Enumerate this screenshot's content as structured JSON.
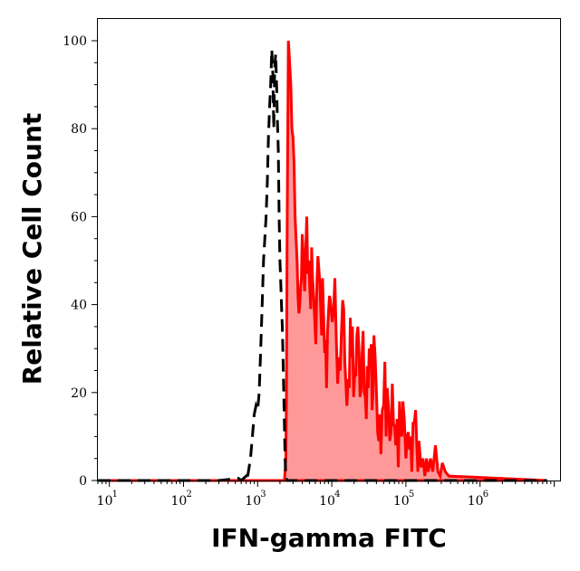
{
  "chart_data": {
    "type": "area",
    "title": "",
    "xlabel": "IFN-gamma FITC",
    "ylabel": "Relative Cell Count",
    "xscale": "log",
    "xlim": [
      7,
      12000000
    ],
    "ylim": [
      0,
      100
    ],
    "grid": false,
    "x_ticks": [
      {
        "base": "10",
        "exp": "1",
        "value": 10
      },
      {
        "base": "10",
        "exp": "2",
        "value": 100
      },
      {
        "base": "10",
        "exp": "3",
        "value": 1000
      },
      {
        "base": "10",
        "exp": "4",
        "value": 10000
      },
      {
        "base": "10",
        "exp": "5",
        "value": 100000
      },
      {
        "base": "10",
        "exp": "6",
        "value": 1000000
      }
    ],
    "y_ticks": [
      "0",
      "20",
      "40",
      "60",
      "80",
      "100"
    ],
    "series": [
      {
        "style": "dashed",
        "color": "#000000",
        "x": [
          7,
          300,
          550,
          600,
          700,
          720,
          750,
          800,
          850,
          900,
          950,
          1000,
          1050,
          1100,
          1150,
          1200,
          1250,
          1300,
          1350,
          1400,
          1450,
          1500,
          1550,
          1600,
          1650,
          1700,
          1750,
          1800,
          1850,
          1900,
          1950,
          2000,
          2050,
          2100,
          2150,
          2200,
          2250,
          2300,
          2350,
          2400,
          2500,
          2600,
          3000,
          5000,
          8000000
        ],
        "y": [
          0,
          0,
          0.5,
          0,
          1,
          0,
          2,
          5,
          10,
          15,
          17,
          16,
          20,
          30,
          40,
          50,
          55,
          60,
          68,
          78,
          85,
          90,
          98,
          93,
          80,
          94,
          97,
          90,
          82,
          75,
          60,
          50,
          45,
          40,
          35,
          28,
          20,
          12,
          5,
          1,
          0,
          0,
          0,
          0,
          0
        ]
      },
      {
        "style": "filled",
        "color": "#ff0000",
        "fill": "#ff9999",
        "x": [
          7,
          2000,
          2300,
          2400,
          2450,
          2500,
          2600,
          2700,
          2800,
          2900,
          3000,
          3100,
          3200,
          3300,
          3400,
          3500,
          3600,
          3700,
          3800,
          3900,
          4000,
          4150,
          4300,
          4450,
          4600,
          4750,
          4900,
          5050,
          5200,
          5350,
          5500,
          5700,
          5900,
          6100,
          6300,
          6500,
          6700,
          6900,
          7100,
          7300,
          7500,
          7750,
          8000,
          8250,
          8500,
          8750,
          9000,
          9300,
          9600,
          9900,
          10200,
          10600,
          11000,
          11500,
          12000,
          12500,
          13000,
          13500,
          14000,
          14500,
          15000,
          15500,
          16000,
          16600,
          17200,
          17800,
          18400,
          19000,
          19700,
          20400,
          21100,
          21800,
          22500,
          23300,
          24100,
          24900,
          25700,
          26500,
          27400,
          28300,
          29200,
          30100,
          31000,
          32000,
          33000,
          34000,
          35000,
          36000,
          37000,
          38500,
          40000,
          41500,
          43000,
          44500,
          46000,
          48000,
          50000,
          52000,
          54000,
          56000,
          58000,
          60500,
          63000,
          65500,
          68000,
          70500,
          73000,
          76000,
          79000,
          82000,
          85000,
          88000,
          91000,
          95000,
          100000,
          104000,
          108000,
          112000,
          116000,
          120000,
          125000,
          130000,
          135000,
          140000,
          145000,
          150000,
          160000,
          170000,
          180000,
          190000,
          200000,
          215000,
          230000,
          250000,
          270000,
          290000,
          310000,
          340000,
          380000,
          8000000
        ],
        "y": [
          0,
          0,
          0,
          5,
          20,
          55,
          100,
          95,
          90,
          80,
          78,
          72,
          60,
          55,
          50,
          42,
          38,
          40,
          44,
          46,
          56,
          50,
          43,
          52,
          60,
          47,
          50,
          44,
          39,
          53,
          46,
          42,
          36,
          31,
          45,
          51,
          48,
          45,
          39,
          33,
          46,
          38,
          29,
          32,
          21,
          34,
          38,
          42,
          41,
          38,
          36,
          39,
          46,
          32,
          22,
          28,
          25,
          34,
          41,
          39,
          27,
          22,
          17,
          23,
          21,
          37,
          28,
          35,
          19,
          24,
          24,
          33,
          35,
          29,
          19,
          21,
          29,
          34,
          20,
          19,
          14,
          26,
          21,
          30,
          27,
          31,
          16,
          20,
          33,
          28,
          20,
          11,
          9,
          15,
          6,
          16,
          17,
          27,
          10,
          21,
          17,
          9,
          11,
          22,
          13,
          12,
          8,
          14,
          3,
          18,
          11,
          10,
          18,
          14,
          5,
          10,
          11,
          7,
          10,
          2,
          13,
          13,
          16,
          8,
          2,
          9,
          3,
          5,
          1,
          5,
          2,
          5,
          2,
          8,
          2,
          1,
          4,
          2,
          1,
          0
        ]
      }
    ]
  }
}
